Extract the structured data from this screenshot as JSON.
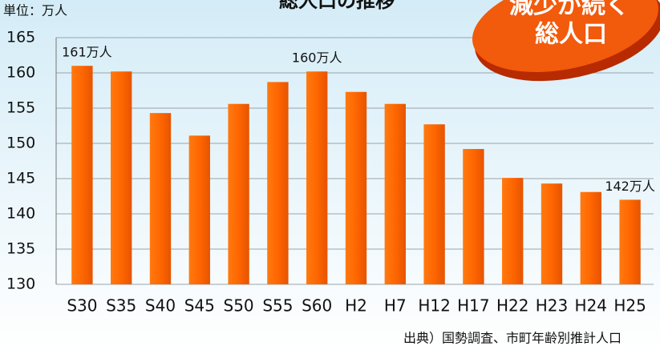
{
  "chart_data": {
    "type": "bar",
    "title": "総人口の推移",
    "unit_label": "単位：万人",
    "source": "出典）国勢調査、市町年齢別推計人口",
    "badge": [
      "減少が続く",
      "総人口"
    ],
    "categories": [
      "S30",
      "S35",
      "S40",
      "S45",
      "S50",
      "S55",
      "S60",
      "H2",
      "H7",
      "H12",
      "H17",
      "H22",
      "H23",
      "H24",
      "H25"
    ],
    "values": [
      161,
      160.2,
      154.3,
      151.1,
      155.6,
      158.7,
      160.2,
      157.3,
      155.6,
      152.7,
      149.2,
      145.1,
      144.3,
      143.1,
      142
    ],
    "value_labels": [
      "161万人",
      null,
      null,
      null,
      null,
      null,
      "160万人",
      null,
      null,
      null,
      null,
      null,
      null,
      null,
      "142万人"
    ],
    "color": "#ff6600",
    "ylim": [
      130,
      165
    ],
    "yticks": [
      130,
      135,
      140,
      145,
      150,
      155,
      160,
      165
    ],
    "grid": true
  }
}
